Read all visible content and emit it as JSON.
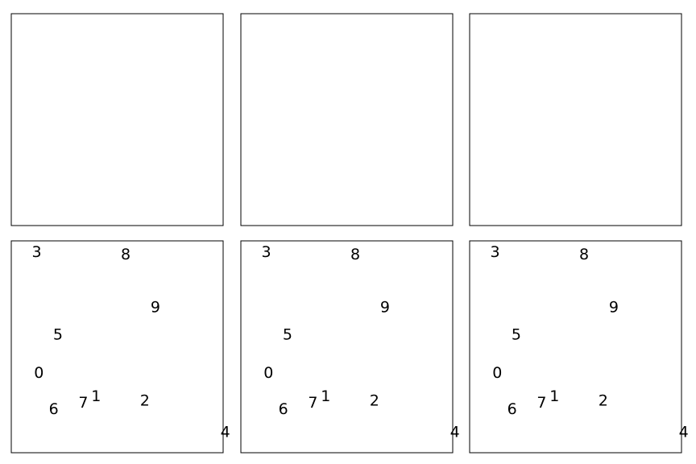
{
  "figure": {
    "panels": [
      {
        "id": "grid-roadmap",
        "kind": "grid"
      },
      {
        "id": "random-roadmap",
        "kind": "random"
      },
      {
        "id": "learned-roadmap",
        "kind": "learned"
      },
      {
        "id": "plan-grid",
        "kind": "plan"
      },
      {
        "id": "plan-random",
        "kind": "plan"
      },
      {
        "id": "plan-learned",
        "kind": "plan"
      }
    ],
    "colors": {
      "0": "#1f77b4",
      "1": "#ff7f0e",
      "2": "#2ca02c",
      "3": "#d62728",
      "4": "#9467bd",
      "5": "#8c564b",
      "6": "#e377c2",
      "7": "#7f7f7f",
      "8": "#bcbd22",
      "9": "#17becf",
      "obstacle": "#000000",
      "roadmap": "#808080"
    },
    "agent_labels": [
      "0",
      "1",
      "2",
      "3",
      "4",
      "5",
      "6",
      "7",
      "8",
      "9"
    ]
  }
}
